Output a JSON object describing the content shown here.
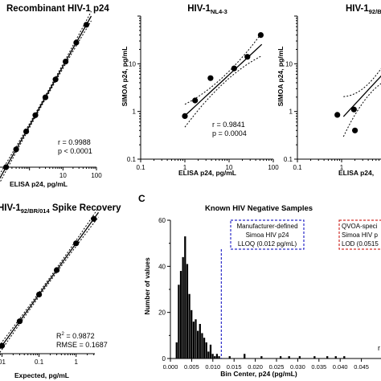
{
  "chart_data": [
    {
      "type": "scatter",
      "title": "Recombinant HIV-1 p24",
      "xlabel": "ELISA p24, pg/mL",
      "ylabel": "",
      "x_scale": "log",
      "y_scale": "log",
      "xlim": [
        0.1,
        100
      ],
      "ylim": [
        0.1,
        100
      ],
      "x_ticks": [
        "10",
        "100"
      ],
      "series": [
        {
          "x": [
            0.2,
            0.4,
            0.8,
            1.5,
            3,
            6,
            12,
            25,
            50
          ],
          "y": [
            0.2,
            0.4,
            0.8,
            1.5,
            3,
            6,
            12,
            25,
            50
          ]
        }
      ],
      "annotations": [
        "r = 0.9988",
        "p < 0.0001"
      ]
    },
    {
      "type": "scatter",
      "title": "HIV-1",
      "title_sub": "NL4-3",
      "xlabel": "ELISA p24, pg/mL",
      "ylabel": "SIMOA p24, pg/mL",
      "x_scale": "log",
      "y_scale": "log",
      "xlim": [
        0.1,
        100
      ],
      "ylim": [
        0.1,
        100
      ],
      "x_ticks": [
        "0.1",
        "1",
        "10",
        "100"
      ],
      "y_ticks": [
        "0.1",
        "1",
        "10"
      ],
      "series": [
        {
          "x": [
            1,
            1.7,
            3.8,
            13,
            26,
            52
          ],
          "y": [
            0.8,
            1.7,
            5,
            8,
            14,
            40
          ]
        }
      ],
      "annotations": [
        "r = 0.9841",
        "p = 0.0004"
      ]
    },
    {
      "type": "scatter",
      "title": "HIV-1",
      "title_sub": "92/BR/",
      "xlabel": "ELISA p24,",
      "ylabel": "SIMOA p24, pg/mL",
      "x_scale": "log",
      "y_scale": "log",
      "xlim": [
        0.1,
        100
      ],
      "ylim": [
        0.1,
        100
      ],
      "x_ticks": [
        "0.1",
        "1",
        "10"
      ],
      "y_ticks": [
        "0.1",
        "1",
        "10"
      ],
      "series": [
        {
          "x": [
            0.8,
            1.9,
            2
          ],
          "y": [
            0.85,
            1.1,
            0.4
          ]
        }
      ]
    },
    {
      "type": "scatter",
      "title": "HIV-1",
      "title_sub": "92/BR/014",
      "title_rest": " Spike Recovery",
      "xlabel": "Expected, pg/mL",
      "ylabel": "",
      "x_scale": "log",
      "y_scale": "log",
      "x_ticks": [
        "01",
        "0.1",
        "1"
      ],
      "series": [
        {
          "x": [
            0.01,
            0.03,
            0.1,
            0.3,
            1,
            3
          ],
          "y": [
            0.01,
            0.03,
            0.1,
            0.3,
            1,
            3
          ]
        }
      ],
      "annotations": [
        "R",
        "2",
        " = 0.9872",
        "RMSE = 0.1687"
      ]
    },
    {
      "type": "bar",
      "panel_label": "C",
      "title": "Known HIV Negative Samples",
      "xlabel": "Bin Center, p24 (pg/mL)",
      "ylabel": "Number of values",
      "xlim": [
        0,
        0.05
      ],
      "ylim": [
        0,
        60
      ],
      "x_ticks": [
        "0.000",
        "0.005",
        "0.010",
        "0.015",
        "0.020",
        "0.025",
        "0.030",
        "0.035",
        "0.040",
        "0.045"
      ],
      "y_ticks": [
        "0",
        "20",
        "40",
        "60"
      ],
      "bin_width": 0.0005,
      "bins": [
        {
          "x": 0.0015,
          "y": 7
        },
        {
          "x": 0.002,
          "y": 32
        },
        {
          "x": 0.0025,
          "y": 38
        },
        {
          "x": 0.003,
          "y": 44
        },
        {
          "x": 0.0035,
          "y": 53
        },
        {
          "x": 0.004,
          "y": 41
        },
        {
          "x": 0.0045,
          "y": 28
        },
        {
          "x": 0.005,
          "y": 21
        },
        {
          "x": 0.0055,
          "y": 16
        },
        {
          "x": 0.006,
          "y": 17
        },
        {
          "x": 0.0065,
          "y": 12
        },
        {
          "x": 0.007,
          "y": 15
        },
        {
          "x": 0.0075,
          "y": 11
        },
        {
          "x": 0.008,
          "y": 9
        },
        {
          "x": 0.0085,
          "y": 7
        },
        {
          "x": 0.009,
          "y": 3
        },
        {
          "x": 0.0095,
          "y": 6
        },
        {
          "x": 0.01,
          "y": 2
        },
        {
          "x": 0.0105,
          "y": 1
        },
        {
          "x": 0.011,
          "y": 2
        },
        {
          "x": 0.0115,
          "y": 1
        },
        {
          "x": 0.014,
          "y": 1
        },
        {
          "x": 0.0175,
          "y": 2
        },
        {
          "x": 0.0215,
          "y": 1
        },
        {
          "x": 0.026,
          "y": 1
        },
        {
          "x": 0.028,
          "y": 1
        },
        {
          "x": 0.0305,
          "y": 1
        },
        {
          "x": 0.034,
          "y": 1
        },
        {
          "x": 0.037,
          "y": 1
        },
        {
          "x": 0.039,
          "y": 1
        },
        {
          "x": 0.041,
          "y": 1
        }
      ],
      "reference_lines": [
        {
          "x": 0.012,
          "color": "#2b2bc8",
          "label": [
            "Manufacturer-defined",
            "Simoa HIV p24",
            "LLOQ (0.012 pg/mL)"
          ]
        },
        {
          "x": 0.0515,
          "color": "#d0302b",
          "label": [
            "QVOA-speci",
            "Simoa HIV p",
            "LOD (0.0515"
          ]
        }
      ],
      "edge_text": "r"
    }
  ]
}
